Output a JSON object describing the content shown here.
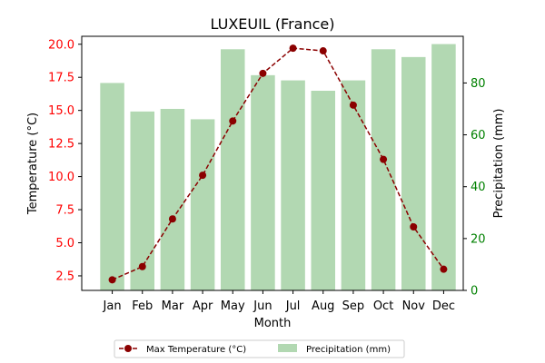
{
  "colors": {
    "temperature": "#8b0000",
    "precipitation_fill": "#b2d8b2",
    "left_axis": "#ff0000",
    "right_axis": "#008000"
  },
  "chart_data": {
    "type": "bar+line",
    "title": "LUXEUIL (France)",
    "xlabel": "Month",
    "ylabel_left": "Temperature (°C)",
    "ylabel_right": "Precipitation (mm)",
    "categories": [
      "Jan",
      "Feb",
      "Mar",
      "Apr",
      "May",
      "Jun",
      "Jul",
      "Aug",
      "Sep",
      "Oct",
      "Nov",
      "Dec"
    ],
    "ylim_left": [
      1.4,
      20.6
    ],
    "ylim_right": [
      0,
      98
    ],
    "yticks_left": [
      "2.5",
      "5.0",
      "7.5",
      "10.0",
      "12.5",
      "15.0",
      "17.5",
      "20.0"
    ],
    "yticks_right": [
      "0",
      "20",
      "40",
      "60",
      "80"
    ],
    "series": [
      {
        "name": "Max Temperature (°C)",
        "type": "line",
        "axis": "left",
        "style": "dashed with circle markers",
        "values": [
          2.2,
          3.2,
          6.8,
          10.1,
          14.2,
          17.8,
          19.7,
          19.5,
          15.4,
          11.3,
          6.2,
          3.0
        ]
      },
      {
        "name": "Precipitation (mm)",
        "type": "bar",
        "axis": "right",
        "values": [
          80,
          69,
          70,
          66,
          93,
          83,
          81,
          77,
          81,
          93,
          90,
          95
        ]
      }
    ],
    "legend_position": "bottom-center",
    "grid": false
  }
}
